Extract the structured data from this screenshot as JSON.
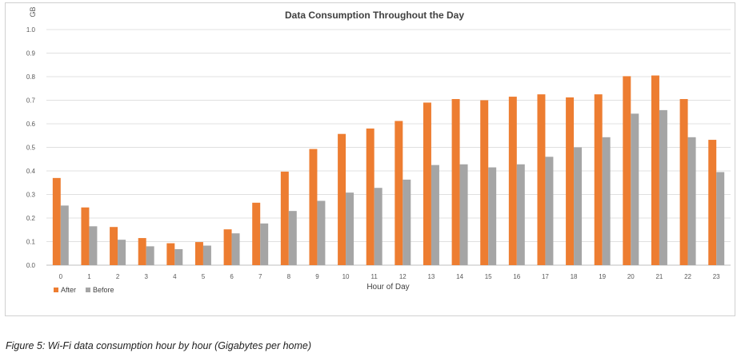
{
  "chart_data": {
    "type": "bar",
    "title": "Data Consumption Throughout the Day",
    "xlabel": "Hour of Day",
    "ylabel": "GB",
    "ylim": [
      0,
      1.0
    ],
    "yticks": [
      "0.0",
      "0.1",
      "0.2",
      "0.3",
      "0.4",
      "0.5",
      "0.6",
      "0.7",
      "0.8",
      "0.9",
      "1.0"
    ],
    "grid": true,
    "legend_position": "bottom-left",
    "categories": [
      "0",
      "1",
      "2",
      "3",
      "4",
      "5",
      "6",
      "7",
      "8",
      "9",
      "10",
      "11",
      "12",
      "13",
      "14",
      "15",
      "16",
      "17",
      "18",
      "19",
      "20",
      "21",
      "22",
      "23"
    ],
    "series": [
      {
        "name": "After",
        "color": "#ED7D31",
        "values": [
          0.37,
          0.245,
          0.162,
          0.115,
          0.093,
          0.098,
          0.152,
          0.265,
          0.397,
          0.493,
          0.557,
          0.58,
          0.612,
          0.69,
          0.705,
          0.7,
          0.715,
          0.725,
          0.712,
          0.725,
          0.802,
          0.805,
          0.705,
          0.532
        ]
      },
      {
        "name": "Before",
        "color": "#A5A5A5",
        "values": [
          0.253,
          0.165,
          0.108,
          0.08,
          0.068,
          0.083,
          0.135,
          0.177,
          0.23,
          0.273,
          0.308,
          0.328,
          0.363,
          0.425,
          0.428,
          0.415,
          0.428,
          0.46,
          0.5,
          0.543,
          0.643,
          0.658,
          0.543,
          0.395
        ]
      }
    ]
  },
  "caption": "Figure 5: Wi-Fi data consumption hour by hour (Gigabytes per home)"
}
